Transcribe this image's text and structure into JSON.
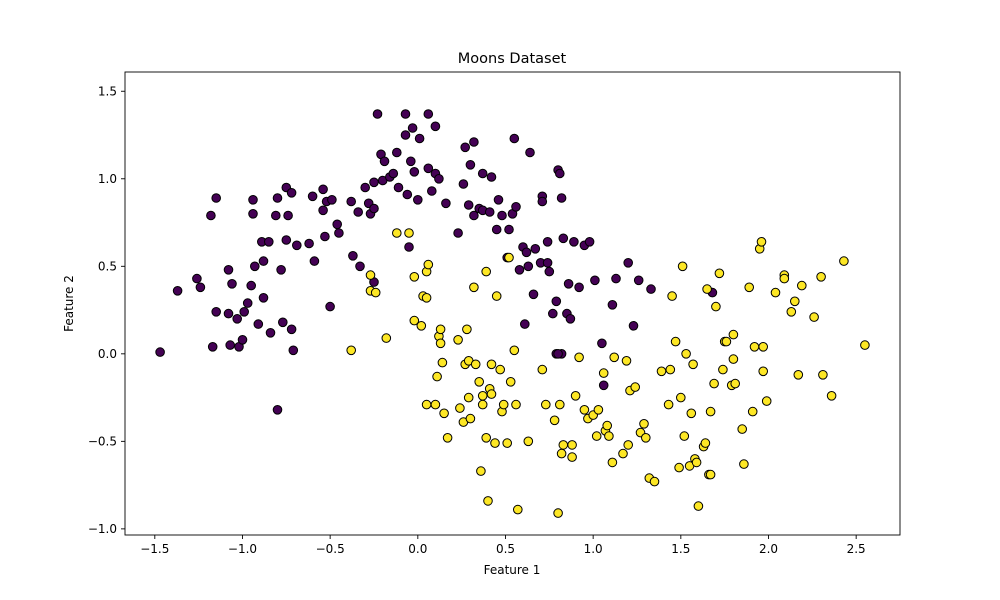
{
  "colors": {
    "class0": "#440154",
    "class1": "#fde725",
    "edge": "#000000",
    "background": "#ffffff"
  },
  "chart_data": {
    "type": "scatter",
    "title": "Moons Dataset",
    "xlabel": "Feature 1",
    "ylabel": "Feature 2",
    "xlim": [
      -1.67,
      2.75
    ],
    "ylim": [
      -1.035,
      1.61
    ],
    "xticks": [
      -1.5,
      -1.0,
      -0.5,
      0.0,
      0.5,
      1.0,
      1.5,
      2.0,
      2.5
    ],
    "xtick_labels": [
      "−1.5",
      "−1.0",
      "−0.5",
      "0.0",
      "0.5",
      "1.0",
      "1.5",
      "2.0",
      "2.5"
    ],
    "yticks": [
      -1.0,
      -0.5,
      0.0,
      0.5,
      1.0,
      1.5
    ],
    "ytick_labels": [
      "−1.0",
      "−0.5",
      "0.0",
      "0.5",
      "1.0",
      "1.5"
    ],
    "grid": false,
    "legend": "none",
    "series": [
      {
        "color": "#440154",
        "points": [
          [
            -1.47,
            0.01
          ],
          [
            -1.37,
            0.36
          ],
          [
            -1.26,
            0.43
          ],
          [
            -1.24,
            0.38
          ],
          [
            -1.18,
            0.79
          ],
          [
            -1.15,
            0.89
          ],
          [
            -1.15,
            0.24
          ],
          [
            -1.17,
            0.04
          ],
          [
            -1.08,
            0.48
          ],
          [
            -1.08,
            0.23
          ],
          [
            -1.07,
            0.05
          ],
          [
            -1.06,
            0.4
          ],
          [
            -1.03,
            0.2
          ],
          [
            -1.02,
            0.04
          ],
          [
            -0.99,
            0.24
          ],
          [
            -1.0,
            0.08
          ],
          [
            -0.97,
            0.29
          ],
          [
            -0.95,
            0.39
          ],
          [
            -0.94,
            0.88
          ],
          [
            -0.94,
            0.8
          ],
          [
            -0.93,
            0.5
          ],
          [
            -0.91,
            0.17
          ],
          [
            -0.89,
            0.64
          ],
          [
            -0.88,
            0.53
          ],
          [
            -0.88,
            0.32
          ],
          [
            -0.85,
            0.64
          ],
          [
            -0.84,
            0.12
          ],
          [
            -0.81,
            0.79
          ],
          [
            -0.8,
            0.89
          ],
          [
            -0.78,
            0.48
          ],
          [
            -0.77,
            0.18
          ],
          [
            -0.75,
            0.65
          ],
          [
            -0.75,
            0.95
          ],
          [
            -0.74,
            0.79
          ],
          [
            -0.72,
            0.92
          ],
          [
            -0.72,
            0.14
          ],
          [
            -0.71,
            0.02
          ],
          [
            -0.69,
            0.62
          ],
          [
            -0.62,
            0.63
          ],
          [
            -0.6,
            0.9
          ],
          [
            -0.59,
            0.53
          ],
          [
            -0.54,
            0.94
          ],
          [
            -0.54,
            0.82
          ],
          [
            -0.53,
            0.67
          ],
          [
            -0.52,
            0.87
          ],
          [
            -0.5,
            0.27
          ],
          [
            -0.49,
            0.88
          ],
          [
            -0.46,
            0.74
          ],
          [
            -0.45,
            0.69
          ],
          [
            -0.38,
            0.87
          ],
          [
            -0.37,
            0.56
          ],
          [
            -0.34,
            0.81
          ],
          [
            -0.33,
            0.5
          ],
          [
            -0.3,
            0.95
          ],
          [
            -0.28,
            0.86
          ],
          [
            -0.27,
            0.8
          ],
          [
            -0.25,
            0.41
          ],
          [
            -0.25,
            0.98
          ],
          [
            -0.25,
            0.83
          ],
          [
            -0.23,
            1.37
          ],
          [
            -0.21,
            1.14
          ],
          [
            -0.2,
            0.99
          ],
          [
            -0.19,
            1.1
          ],
          [
            -0.16,
            1.01
          ],
          [
            -0.14,
            1.03
          ],
          [
            -0.12,
            1.15
          ],
          [
            -0.11,
            0.95
          ],
          [
            -0.07,
            1.25
          ],
          [
            -0.07,
            1.37
          ],
          [
            -0.06,
            0.91
          ],
          [
            -0.05,
            0.61
          ],
          [
            -0.04,
            1.1
          ],
          [
            -0.03,
            1.29
          ],
          [
            -0.02,
            1.04
          ],
          [
            0.0,
            0.88
          ],
          [
            0.01,
            1.23
          ],
          [
            0.06,
            1.37
          ],
          [
            0.06,
            1.06
          ],
          [
            0.08,
            0.93
          ],
          [
            0.1,
            1.3
          ],
          [
            0.1,
            1.03
          ],
          [
            0.12,
            1.0
          ],
          [
            0.16,
            0.86
          ],
          [
            0.23,
            0.69
          ],
          [
            0.26,
            0.97
          ],
          [
            0.27,
            1.18
          ],
          [
            0.29,
            0.85
          ],
          [
            0.3,
            1.08
          ],
          [
            0.32,
            1.21
          ],
          [
            0.32,
            0.79
          ],
          [
            0.35,
            0.83
          ],
          [
            0.37,
            0.82
          ],
          [
            0.37,
            1.03
          ],
          [
            0.41,
            0.81
          ],
          [
            0.42,
            1.01
          ],
          [
            0.45,
            0.71
          ],
          [
            0.46,
            0.88
          ],
          [
            0.48,
            0.79
          ],
          [
            0.51,
            0.55
          ],
          [
            0.52,
            0.71
          ],
          [
            0.54,
            0.8
          ],
          [
            0.55,
            1.23
          ],
          [
            0.56,
            0.84
          ],
          [
            0.58,
            0.48
          ],
          [
            0.6,
            0.61
          ],
          [
            0.61,
            0.17
          ],
          [
            0.62,
            0.58
          ],
          [
            0.63,
            0.5
          ],
          [
            0.64,
            1.15
          ],
          [
            0.66,
            0.34
          ],
          [
            0.67,
            0.6
          ],
          [
            0.7,
            0.52
          ],
          [
            0.71,
            0.9
          ],
          [
            0.71,
            0.87
          ],
          [
            0.74,
            0.64
          ],
          [
            0.75,
            0.47
          ],
          [
            0.77,
            0.23
          ],
          [
            0.79,
            0.0
          ],
          [
            0.79,
            0.3
          ],
          [
            0.8,
            1.05
          ],
          [
            0.81,
            1.03
          ],
          [
            0.82,
            0.0
          ],
          [
            0.82,
            0.89
          ],
          [
            0.83,
            0.66
          ],
          [
            0.85,
            0.23
          ],
          [
            0.86,
            0.4
          ],
          [
            0.87,
            0.2
          ],
          [
            0.89,
            0.64
          ],
          [
            0.92,
            0.38
          ],
          [
            0.95,
            0.62
          ],
          [
            0.98,
            0.64
          ],
          [
            1.01,
            0.42
          ],
          [
            1.05,
            0.06
          ],
          [
            1.06,
            -0.18
          ],
          [
            1.11,
            0.28
          ],
          [
            1.13,
            0.43
          ],
          [
            1.2,
            0.52
          ],
          [
            1.23,
            0.16
          ],
          [
            1.26,
            0.42
          ],
          [
            1.33,
            0.37
          ],
          [
            1.68,
            0.35
          ],
          [
            0.74,
            0.52
          ],
          [
            -0.8,
            -0.32
          ],
          [
            0.8,
            0.0
          ]
        ]
      },
      {
        "color": "#fde725",
        "points": [
          [
            -0.38,
            0.02
          ],
          [
            -0.27,
            0.45
          ],
          [
            -0.27,
            0.36
          ],
          [
            -0.24,
            0.35
          ],
          [
            -0.18,
            0.09
          ],
          [
            -0.12,
            0.69
          ],
          [
            -0.05,
            0.69
          ],
          [
            -0.02,
            0.44
          ],
          [
            -0.02,
            0.19
          ],
          [
            0.02,
            0.16
          ],
          [
            0.03,
            0.33
          ],
          [
            0.05,
            0.32
          ],
          [
            0.05,
            0.47
          ],
          [
            0.06,
            0.51
          ],
          [
            0.05,
            -0.29
          ],
          [
            0.1,
            -0.29
          ],
          [
            0.11,
            -0.13
          ],
          [
            0.12,
            0.1
          ],
          [
            0.13,
            0.14
          ],
          [
            0.13,
            0.06
          ],
          [
            0.14,
            -0.05
          ],
          [
            0.15,
            -0.34
          ],
          [
            0.17,
            -0.48
          ],
          [
            0.23,
            0.08
          ],
          [
            0.24,
            -0.31
          ],
          [
            0.26,
            -0.39
          ],
          [
            0.27,
            -0.06
          ],
          [
            0.28,
            0.14
          ],
          [
            0.29,
            -0.04
          ],
          [
            0.29,
            -0.25
          ],
          [
            0.3,
            -0.37
          ],
          [
            0.32,
            0.38
          ],
          [
            0.33,
            -0.06
          ],
          [
            0.35,
            -0.16
          ],
          [
            0.36,
            -0.67
          ],
          [
            0.37,
            -0.29
          ],
          [
            0.37,
            -0.24
          ],
          [
            0.39,
            -0.48
          ],
          [
            0.39,
            0.47
          ],
          [
            0.4,
            -0.84
          ],
          [
            0.41,
            -0.2
          ],
          [
            0.42,
            -0.23
          ],
          [
            0.42,
            -0.06
          ],
          [
            0.44,
            -0.51
          ],
          [
            0.45,
            0.33
          ],
          [
            0.47,
            -0.09
          ],
          [
            0.48,
            -0.33
          ],
          [
            0.49,
            -0.29
          ],
          [
            0.51,
            -0.51
          ],
          [
            0.52,
            0.55
          ],
          [
            0.53,
            -0.16
          ],
          [
            0.55,
            0.02
          ],
          [
            0.56,
            -0.29
          ],
          [
            0.57,
            -0.89
          ],
          [
            0.71,
            -0.09
          ],
          [
            0.73,
            -0.29
          ],
          [
            0.78,
            -0.38
          ],
          [
            0.8,
            -0.91
          ],
          [
            0.81,
            -0.29
          ],
          [
            0.82,
            -0.57
          ],
          [
            0.83,
            -0.52
          ],
          [
            0.88,
            -0.59
          ],
          [
            0.88,
            -0.52
          ],
          [
            0.9,
            -0.24
          ],
          [
            0.92,
            -0.02
          ],
          [
            0.95,
            -0.32
          ],
          [
            0.97,
            -0.37
          ],
          [
            1.0,
            -0.35
          ],
          [
            1.02,
            -0.47
          ],
          [
            1.03,
            -0.32
          ],
          [
            1.06,
            -0.11
          ],
          [
            1.07,
            -0.44
          ],
          [
            1.08,
            -0.41
          ],
          [
            1.09,
            -0.47
          ],
          [
            1.11,
            -0.62
          ],
          [
            1.12,
            -0.02
          ],
          [
            1.17,
            -0.57
          ],
          [
            1.19,
            -0.04
          ],
          [
            1.2,
            -0.52
          ],
          [
            1.21,
            -0.21
          ],
          [
            1.24,
            -0.19
          ],
          [
            1.27,
            -0.45
          ],
          [
            1.29,
            -0.4
          ],
          [
            1.3,
            -0.48
          ],
          [
            1.32,
            -0.71
          ],
          [
            1.35,
            -0.73
          ],
          [
            1.39,
            -0.1
          ],
          [
            1.43,
            -0.29
          ],
          [
            1.44,
            -0.09
          ],
          [
            1.45,
            0.33
          ],
          [
            1.47,
            0.07
          ],
          [
            1.49,
            -0.65
          ],
          [
            1.5,
            -0.25
          ],
          [
            1.51,
            0.5
          ],
          [
            1.52,
            -0.47
          ],
          [
            1.53,
            0.0
          ],
          [
            1.55,
            -0.64
          ],
          [
            1.56,
            -0.34
          ],
          [
            1.57,
            -0.06
          ],
          [
            1.58,
            -0.6
          ],
          [
            1.6,
            -0.87
          ],
          [
            1.63,
            -0.53
          ],
          [
            1.64,
            -0.51
          ],
          [
            1.65,
            0.37
          ],
          [
            1.66,
            -0.69
          ],
          [
            1.67,
            -0.33
          ],
          [
            1.69,
            -0.17
          ],
          [
            1.7,
            0.27
          ],
          [
            1.72,
            0.46
          ],
          [
            1.74,
            -0.09
          ],
          [
            1.75,
            0.07
          ],
          [
            1.76,
            0.07
          ],
          [
            1.79,
            -0.18
          ],
          [
            1.8,
            -0.03
          ],
          [
            1.8,
            0.11
          ],
          [
            1.81,
            -0.17
          ],
          [
            1.85,
            -0.43
          ],
          [
            1.86,
            -0.63
          ],
          [
            1.89,
            0.38
          ],
          [
            1.91,
            -0.33
          ],
          [
            1.92,
            0.04
          ],
          [
            1.95,
            0.6
          ],
          [
            1.96,
            0.64
          ],
          [
            1.97,
            0.04
          ],
          [
            1.97,
            -0.1
          ],
          [
            1.99,
            -0.27
          ],
          [
            2.04,
            0.35
          ],
          [
            2.09,
            0.45
          ],
          [
            2.09,
            0.43
          ],
          [
            2.13,
            0.24
          ],
          [
            2.15,
            0.3
          ],
          [
            2.17,
            -0.12
          ],
          [
            2.19,
            0.39
          ],
          [
            2.26,
            0.21
          ],
          [
            2.3,
            0.44
          ],
          [
            2.31,
            -0.12
          ],
          [
            2.36,
            -0.24
          ],
          [
            2.43,
            0.53
          ],
          [
            2.55,
            0.05
          ],
          [
            1.67,
            -0.69
          ],
          [
            0.63,
            -0.5
          ],
          [
            1.59,
            -0.62
          ]
        ]
      }
    ]
  }
}
